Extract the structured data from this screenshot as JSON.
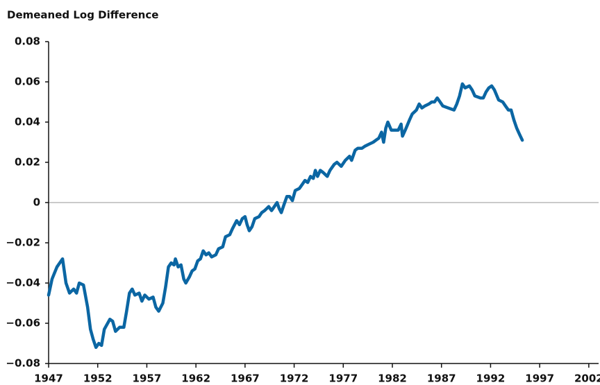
{
  "chart_data": {
    "type": "line",
    "title": "Demeaned Log Difference",
    "xlim": [
      1947,
      2003
    ],
    "xticks": [
      1947,
      1952,
      1957,
      1962,
      1967,
      1972,
      1977,
      1982,
      1987,
      1992,
      1997,
      2002
    ],
    "ylim": [
      -0.08,
      0.08
    ],
    "yticks": [
      {
        "value": -0.08,
        "label": "−0.08"
      },
      {
        "value": -0.06,
        "label": "−0.06"
      },
      {
        "value": -0.04,
        "label": "−0.04"
      },
      {
        "value": -0.02,
        "label": "−0.02"
      },
      0,
      0.02,
      0.04,
      0.06,
      0.08
    ],
    "reference_line": 0,
    "grid": false,
    "series": [
      {
        "name": "Demeaned Log Difference",
        "color": "#0b66a3",
        "x": [
          1947.0,
          1947.35,
          1947.85,
          1948.42,
          1948.77,
          1949.13,
          1949.55,
          1949.84,
          1950.12,
          1950.55,
          1950.97,
          1951.26,
          1951.54,
          1951.82,
          1952.11,
          1952.39,
          1952.67,
          1953.24,
          1953.52,
          1953.81,
          1954.23,
          1954.66,
          1954.94,
          1955.23,
          1955.51,
          1955.79,
          1956.22,
          1956.5,
          1956.79,
          1957.21,
          1957.64,
          1957.92,
          1958.21,
          1958.63,
          1958.91,
          1959.2,
          1959.48,
          1959.77,
          1959.91,
          1960.19,
          1960.48,
          1960.76,
          1960.97,
          1961.33,
          1961.61,
          1961.89,
          1962.18,
          1962.46,
          1962.74,
          1963.03,
          1963.31,
          1963.6,
          1964.02,
          1964.3,
          1964.73,
          1965.01,
          1965.44,
          1965.72,
          1966.15,
          1966.43,
          1966.72,
          1967.0,
          1967.21,
          1967.43,
          1967.71,
          1967.99,
          1968.42,
          1968.7,
          1968.99,
          1969.41,
          1969.7,
          1969.98,
          1970.26,
          1970.48,
          1970.69,
          1970.97,
          1971.26,
          1971.54,
          1971.82,
          1972.11,
          1972.53,
          1972.82,
          1973.1,
          1973.38,
          1973.67,
          1973.95,
          1974.16,
          1974.38,
          1974.66,
          1974.94,
          1975.37,
          1975.65,
          1976.08,
          1976.36,
          1976.79,
          1977.21,
          1977.64,
          1977.85,
          1978.21,
          1978.49,
          1978.91,
          1979.2,
          1979.62,
          1980.05,
          1980.33,
          1980.62,
          1980.9,
          1981.11,
          1981.33,
          1981.54,
          1981.89,
          1982.32,
          1982.6,
          1982.89,
          1983.03,
          1983.31,
          1983.74,
          1984.02,
          1984.45,
          1984.73,
          1985.01,
          1985.3,
          1985.72,
          1986.01,
          1986.29,
          1986.57,
          1986.86,
          1987.14,
          1987.71,
          1988.28,
          1988.56,
          1988.84,
          1989.13,
          1989.41,
          1989.84,
          1990.12,
          1990.4,
          1990.97,
          1991.26,
          1991.54,
          1991.82,
          1992.11,
          1992.39,
          1992.82,
          1993.24,
          1993.52,
          1993.81,
          1994.09,
          1994.38,
          1994.66,
          1994.94,
          1995.23
        ],
        "values": [
          -0.046,
          -0.038,
          -0.032,
          -0.028,
          -0.04,
          -0.045,
          -0.043,
          -0.045,
          -0.04,
          -0.041,
          -0.052,
          -0.063,
          -0.068,
          -0.072,
          -0.07,
          -0.071,
          -0.063,
          -0.058,
          -0.059,
          -0.064,
          -0.062,
          -0.062,
          -0.054,
          -0.045,
          -0.043,
          -0.046,
          -0.045,
          -0.049,
          -0.046,
          -0.048,
          -0.047,
          -0.052,
          -0.054,
          -0.05,
          -0.042,
          -0.032,
          -0.03,
          -0.031,
          -0.028,
          -0.032,
          -0.031,
          -0.038,
          -0.04,
          -0.037,
          -0.034,
          -0.033,
          -0.029,
          -0.028,
          -0.024,
          -0.026,
          -0.025,
          -0.027,
          -0.026,
          -0.023,
          -0.022,
          -0.017,
          -0.016,
          -0.013,
          -0.009,
          -0.011,
          -0.008,
          -0.007,
          -0.011,
          -0.014,
          -0.012,
          -0.008,
          -0.007,
          -0.005,
          -0.004,
          -0.002,
          -0.004,
          -0.002,
          0.0,
          -0.003,
          -0.005,
          -0.001,
          0.003,
          0.003,
          0.001,
          0.006,
          0.007,
          0.009,
          0.011,
          0.01,
          0.013,
          0.012,
          0.016,
          0.013,
          0.016,
          0.015,
          0.013,
          0.016,
          0.019,
          0.02,
          0.018,
          0.021,
          0.023,
          0.021,
          0.026,
          0.027,
          0.027,
          0.028,
          0.029,
          0.03,
          0.031,
          0.032,
          0.035,
          0.03,
          0.037,
          0.04,
          0.036,
          0.036,
          0.036,
          0.039,
          0.033,
          0.036,
          0.041,
          0.044,
          0.046,
          0.049,
          0.047,
          0.048,
          0.049,
          0.05,
          0.05,
          0.052,
          0.05,
          0.048,
          0.047,
          0.046,
          0.049,
          0.053,
          0.059,
          0.057,
          0.058,
          0.056,
          0.053,
          0.052,
          0.052,
          0.055,
          0.057,
          0.058,
          0.056,
          0.051,
          0.05,
          0.048,
          0.046,
          0.046,
          0.041,
          0.037,
          0.034,
          0.031
        ]
      }
    ]
  }
}
